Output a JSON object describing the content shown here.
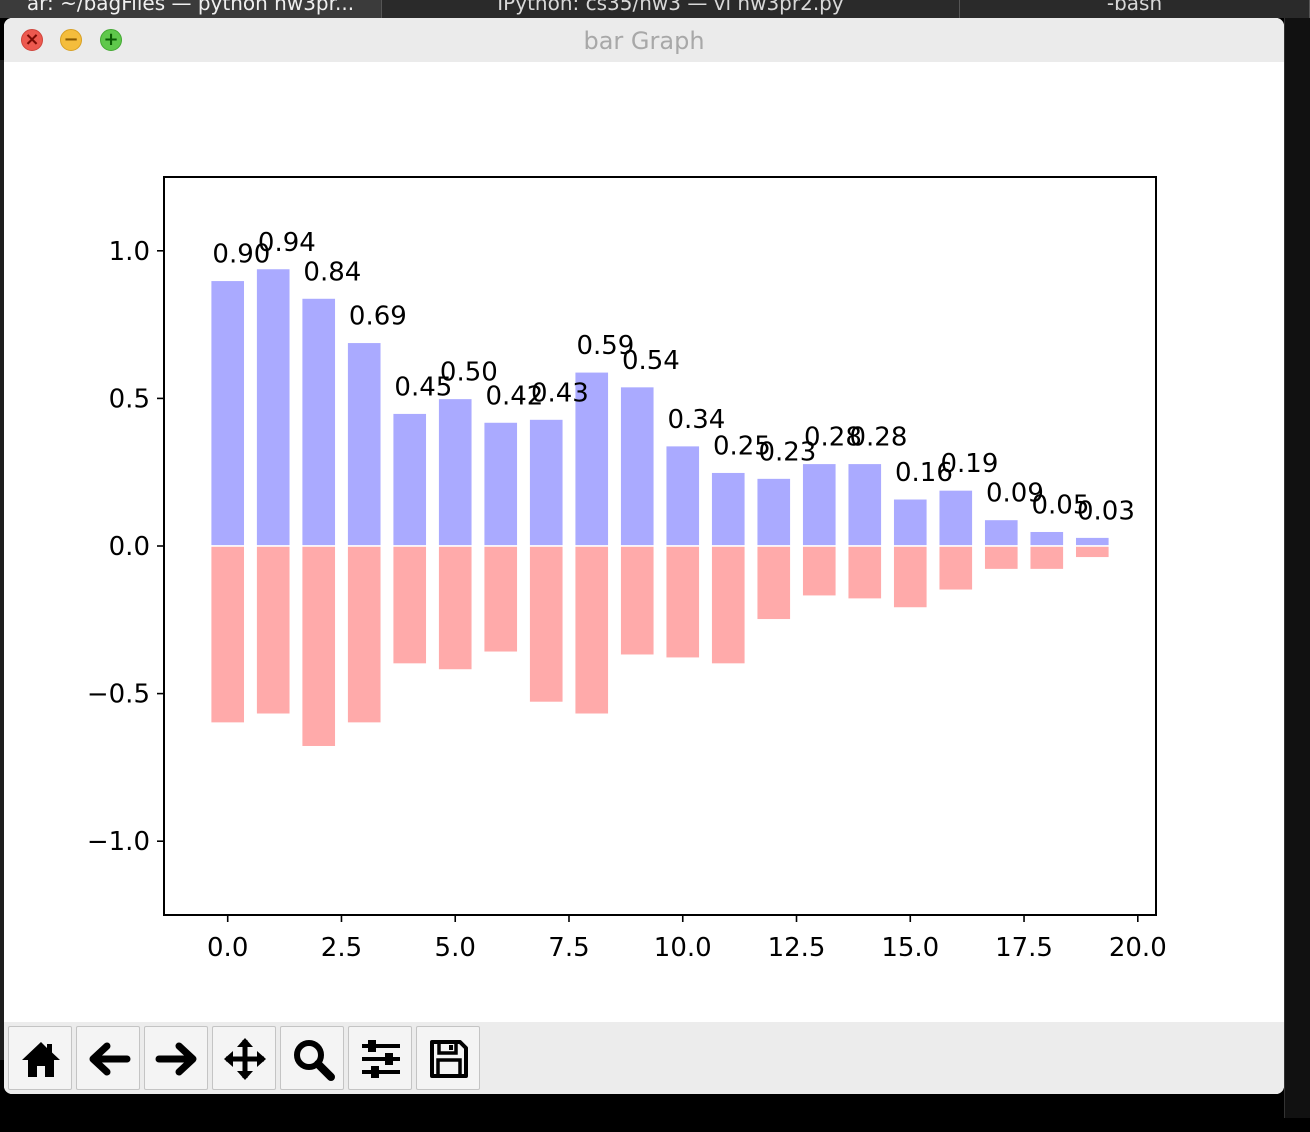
{
  "background_tabs": [
    {
      "label": "ar: ~/bagFiles — python hw3pr..."
    },
    {
      "label": "IPython: cs35/hw3 — vi hw3pr2.py"
    },
    {
      "label": "-bash"
    }
  ],
  "window": {
    "title": "bar Graph",
    "traffic_lights": {
      "close": "×",
      "minimize": "−",
      "maximize": "+"
    }
  },
  "toolbar": {
    "buttons": [
      {
        "name": "home-button",
        "icon": "home-icon"
      },
      {
        "name": "back-button",
        "icon": "arrow-left-icon"
      },
      {
        "name": "forward-button",
        "icon": "arrow-right-icon"
      },
      {
        "name": "pan-button",
        "icon": "move-icon"
      },
      {
        "name": "zoom-button",
        "icon": "magnifier-icon"
      },
      {
        "name": "configure-subplots-button",
        "icon": "sliders-icon"
      },
      {
        "name": "save-button",
        "icon": "floppy-disk-icon"
      }
    ]
  },
  "chart_data": {
    "type": "bar",
    "x": [
      0,
      1,
      2,
      3,
      4,
      5,
      6,
      7,
      8,
      9,
      10,
      11,
      12,
      13,
      14,
      15,
      16,
      17,
      18,
      19
    ],
    "series": [
      {
        "color": "#aaaaff",
        "values": [
          0.9,
          0.94,
          0.84,
          0.69,
          0.45,
          0.5,
          0.42,
          0.43,
          0.59,
          0.54,
          0.34,
          0.25,
          0.23,
          0.28,
          0.28,
          0.16,
          0.19,
          0.09,
          0.05,
          0.03
        ]
      },
      {
        "color": "#ffaaaa",
        "values": [
          -0.6,
          -0.57,
          -0.68,
          -0.6,
          -0.4,
          -0.42,
          -0.36,
          -0.53,
          -0.57,
          -0.37,
          -0.38,
          -0.4,
          -0.25,
          -0.17,
          -0.18,
          -0.21,
          -0.15,
          -0.08,
          -0.08,
          -0.04
        ]
      }
    ],
    "data_labels": [
      "0.90",
      "0.94",
      "0.84",
      "0.69",
      "0.45",
      "0.50",
      "0.42",
      "0.43",
      "0.59",
      "0.54",
      "0.34",
      "0.25",
      "0.23",
      "0.28",
      "0.28",
      "0.16",
      "0.19",
      "0.09",
      "0.05",
      "0.03"
    ],
    "xlim": [
      -1.4,
      20.4
    ],
    "ylim": [
      -1.25,
      1.25
    ],
    "xticks": [
      0.0,
      2.5,
      5.0,
      7.5,
      10.0,
      12.5,
      15.0,
      17.5,
      20.0
    ],
    "xtick_labels": [
      "0.0",
      "2.5",
      "5.0",
      "7.5",
      "10.0",
      "12.5",
      "15.0",
      "17.5",
      "20.0"
    ],
    "yticks": [
      1.0,
      0.5,
      0.0,
      -0.5,
      -1.0
    ],
    "ytick_labels": [
      "1.0",
      "0.5",
      "0.0",
      "−0.5",
      "−1.0"
    ],
    "bar_width": 0.75,
    "title": "",
    "xlabel": "",
    "ylabel": "",
    "grid": false
  }
}
